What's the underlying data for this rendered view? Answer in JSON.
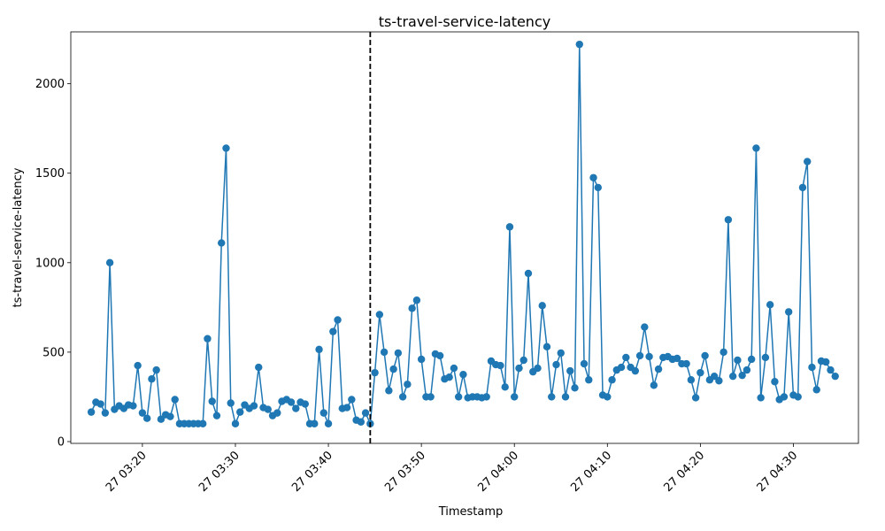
{
  "chart_data": {
    "type": "line",
    "title": "ts-travel-service-latency",
    "xlabel": "Timestamp",
    "ylabel": "ts-travel-service-latency",
    "ylim": [
      -10,
      2290
    ],
    "yticks": [
      0,
      500,
      1000,
      1500,
      2000
    ],
    "xticks": [
      {
        "label": "27 03:20",
        "minute": 200
      },
      {
        "label": "27 03:30",
        "minute": 210
      },
      {
        "label": "27 03:40",
        "minute": 220
      },
      {
        "label": "27 03:50",
        "minute": 230
      },
      {
        "label": "27 04:00",
        "minute": 240
      },
      {
        "label": "27 04:10",
        "minute": 250
      },
      {
        "label": "27 04:20",
        "minute": 260
      },
      {
        "label": "27 04:30",
        "minute": 270
      }
    ],
    "x_start_minute": 194.5,
    "x_step_minutes": 0.5,
    "series": [
      {
        "color": "#1f77b4",
        "values": [
          165,
          220,
          210,
          160,
          1000,
          180,
          200,
          185,
          205,
          200,
          425,
          160,
          130,
          350,
          400,
          125,
          150,
          140,
          235,
          100,
          100,
          100,
          100,
          100,
          100,
          575,
          225,
          145,
          1110,
          1640,
          215,
          100,
          165,
          205,
          185,
          200,
          415,
          190,
          180,
          145,
          160,
          225,
          235,
          220,
          185,
          220,
          210,
          100,
          100,
          515,
          160,
          100,
          615,
          680,
          185,
          190,
          235,
          120,
          110,
          160,
          100,
          385,
          710,
          500,
          285,
          405,
          495,
          250,
          320,
          745,
          790,
          460,
          250,
          250,
          490,
          480,
          350,
          360,
          410,
          250,
          375,
          245,
          250,
          250,
          245,
          250,
          450,
          430,
          425,
          305,
          1200,
          250,
          410,
          455,
          940,
          390,
          410,
          760,
          530,
          250,
          430,
          495,
          250,
          395,
          300,
          2220,
          435,
          345,
          1475,
          1420,
          260,
          250,
          345,
          400,
          415,
          470,
          415,
          395,
          480,
          640,
          475,
          315,
          405,
          470,
          475,
          460,
          465,
          435,
          435,
          345,
          245,
          385,
          480,
          345,
          365,
          340,
          500,
          1240,
          365,
          455,
          370,
          400,
          460,
          1640,
          245,
          470,
          765,
          335,
          235,
          250,
          725,
          260,
          250,
          1420,
          1565,
          415,
          290,
          450,
          445,
          400,
          365
        ]
      }
    ],
    "annotations": [
      {
        "type": "vertical-dashed-line",
        "x_minute": 224.5,
        "color": "#000000"
      }
    ]
  }
}
